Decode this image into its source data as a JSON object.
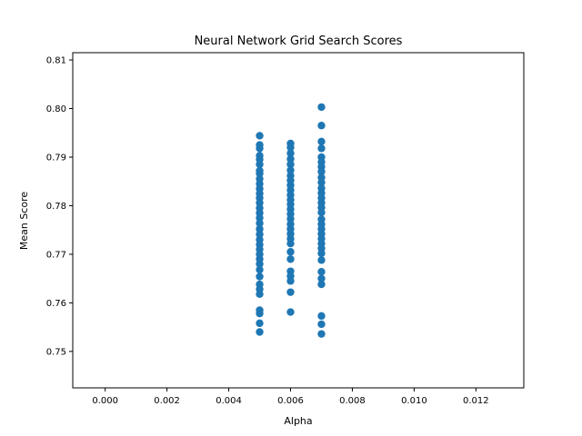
{
  "chart_data": {
    "type": "scatter",
    "title": "Neural Network Grid Search Scores",
    "xlabel": "Alpha",
    "ylabel": "Mean Score",
    "xlim": [
      -0.00105,
      0.01355
    ],
    "ylim": [
      0.7425,
      0.8115
    ],
    "xticks": [
      0.0,
      0.002,
      0.004,
      0.006,
      0.008,
      0.01,
      0.012
    ],
    "xtick_labels": [
      "0.000",
      "0.002",
      "0.004",
      "0.006",
      "0.008",
      "0.010",
      "0.012"
    ],
    "yticks": [
      0.75,
      0.76,
      0.77,
      0.78,
      0.79,
      0.8,
      0.81
    ],
    "ytick_labels": [
      "0.75",
      "0.76",
      "0.77",
      "0.78",
      "0.79",
      "0.80",
      "0.81"
    ],
    "grid": false,
    "marker_color": "#1f77b4",
    "series": [
      {
        "name": "",
        "points": [
          {
            "x": 0.005,
            "y": 0.7944
          },
          {
            "x": 0.005,
            "y": 0.7925
          },
          {
            "x": 0.005,
            "y": 0.7918
          },
          {
            "x": 0.005,
            "y": 0.7903
          },
          {
            "x": 0.005,
            "y": 0.7895
          },
          {
            "x": 0.005,
            "y": 0.7885
          },
          {
            "x": 0.005,
            "y": 0.7872
          },
          {
            "x": 0.005,
            "y": 0.7866
          },
          {
            "x": 0.005,
            "y": 0.7855
          },
          {
            "x": 0.005,
            "y": 0.7845
          },
          {
            "x": 0.005,
            "y": 0.7835
          },
          {
            "x": 0.005,
            "y": 0.7825
          },
          {
            "x": 0.005,
            "y": 0.7816
          },
          {
            "x": 0.005,
            "y": 0.7806
          },
          {
            "x": 0.005,
            "y": 0.7795
          },
          {
            "x": 0.005,
            "y": 0.7785
          },
          {
            "x": 0.005,
            "y": 0.7775
          },
          {
            "x": 0.005,
            "y": 0.7764
          },
          {
            "x": 0.005,
            "y": 0.7752
          },
          {
            "x": 0.005,
            "y": 0.7741
          },
          {
            "x": 0.005,
            "y": 0.773
          },
          {
            "x": 0.005,
            "y": 0.772
          },
          {
            "x": 0.005,
            "y": 0.771
          },
          {
            "x": 0.005,
            "y": 0.77
          },
          {
            "x": 0.005,
            "y": 0.769
          },
          {
            "x": 0.005,
            "y": 0.768
          },
          {
            "x": 0.005,
            "y": 0.7668
          },
          {
            "x": 0.005,
            "y": 0.7654
          },
          {
            "x": 0.005,
            "y": 0.7638
          },
          {
            "x": 0.005,
            "y": 0.7628
          },
          {
            "x": 0.005,
            "y": 0.7618
          },
          {
            "x": 0.005,
            "y": 0.7585
          },
          {
            "x": 0.005,
            "y": 0.7578
          },
          {
            "x": 0.005,
            "y": 0.7558
          },
          {
            "x": 0.005,
            "y": 0.754
          },
          {
            "x": 0.006,
            "y": 0.7928
          },
          {
            "x": 0.006,
            "y": 0.792
          },
          {
            "x": 0.006,
            "y": 0.7908
          },
          {
            "x": 0.006,
            "y": 0.7896
          },
          {
            "x": 0.006,
            "y": 0.7885
          },
          {
            "x": 0.006,
            "y": 0.7873
          },
          {
            "x": 0.006,
            "y": 0.7862
          },
          {
            "x": 0.006,
            "y": 0.7852
          },
          {
            "x": 0.006,
            "y": 0.7842
          },
          {
            "x": 0.006,
            "y": 0.7832
          },
          {
            "x": 0.006,
            "y": 0.7822
          },
          {
            "x": 0.006,
            "y": 0.7812
          },
          {
            "x": 0.006,
            "y": 0.7803
          },
          {
            "x": 0.006,
            "y": 0.7793
          },
          {
            "x": 0.006,
            "y": 0.7783
          },
          {
            "x": 0.006,
            "y": 0.7773
          },
          {
            "x": 0.006,
            "y": 0.7762
          },
          {
            "x": 0.006,
            "y": 0.7752
          },
          {
            "x": 0.006,
            "y": 0.7742
          },
          {
            "x": 0.006,
            "y": 0.7732
          },
          {
            "x": 0.006,
            "y": 0.7722
          },
          {
            "x": 0.006,
            "y": 0.7705
          },
          {
            "x": 0.006,
            "y": 0.769
          },
          {
            "x": 0.006,
            "y": 0.7665
          },
          {
            "x": 0.006,
            "y": 0.7655
          },
          {
            "x": 0.006,
            "y": 0.7645
          },
          {
            "x": 0.006,
            "y": 0.7622
          },
          {
            "x": 0.006,
            "y": 0.7581
          },
          {
            "x": 0.007,
            "y": 0.8003
          },
          {
            "x": 0.007,
            "y": 0.7965
          },
          {
            "x": 0.007,
            "y": 0.7932
          },
          {
            "x": 0.007,
            "y": 0.7918
          },
          {
            "x": 0.007,
            "y": 0.79
          },
          {
            "x": 0.007,
            "y": 0.789
          },
          {
            "x": 0.007,
            "y": 0.788
          },
          {
            "x": 0.007,
            "y": 0.787
          },
          {
            "x": 0.007,
            "y": 0.7858
          },
          {
            "x": 0.007,
            "y": 0.7848
          },
          {
            "x": 0.007,
            "y": 0.7836
          },
          {
            "x": 0.007,
            "y": 0.7826
          },
          {
            "x": 0.007,
            "y": 0.7816
          },
          {
            "x": 0.007,
            "y": 0.7806
          },
          {
            "x": 0.007,
            "y": 0.7796
          },
          {
            "x": 0.007,
            "y": 0.7786
          },
          {
            "x": 0.007,
            "y": 0.7772
          },
          {
            "x": 0.007,
            "y": 0.7762
          },
          {
            "x": 0.007,
            "y": 0.7752
          },
          {
            "x": 0.007,
            "y": 0.7742
          },
          {
            "x": 0.007,
            "y": 0.7732
          },
          {
            "x": 0.007,
            "y": 0.7722
          },
          {
            "x": 0.007,
            "y": 0.7712
          },
          {
            "x": 0.007,
            "y": 0.7702
          },
          {
            "x": 0.007,
            "y": 0.7688
          },
          {
            "x": 0.007,
            "y": 0.7664
          },
          {
            "x": 0.007,
            "y": 0.765
          },
          {
            "x": 0.007,
            "y": 0.7638
          },
          {
            "x": 0.007,
            "y": 0.7573
          },
          {
            "x": 0.007,
            "y": 0.7556
          },
          {
            "x": 0.007,
            "y": 0.7536
          }
        ]
      }
    ]
  }
}
